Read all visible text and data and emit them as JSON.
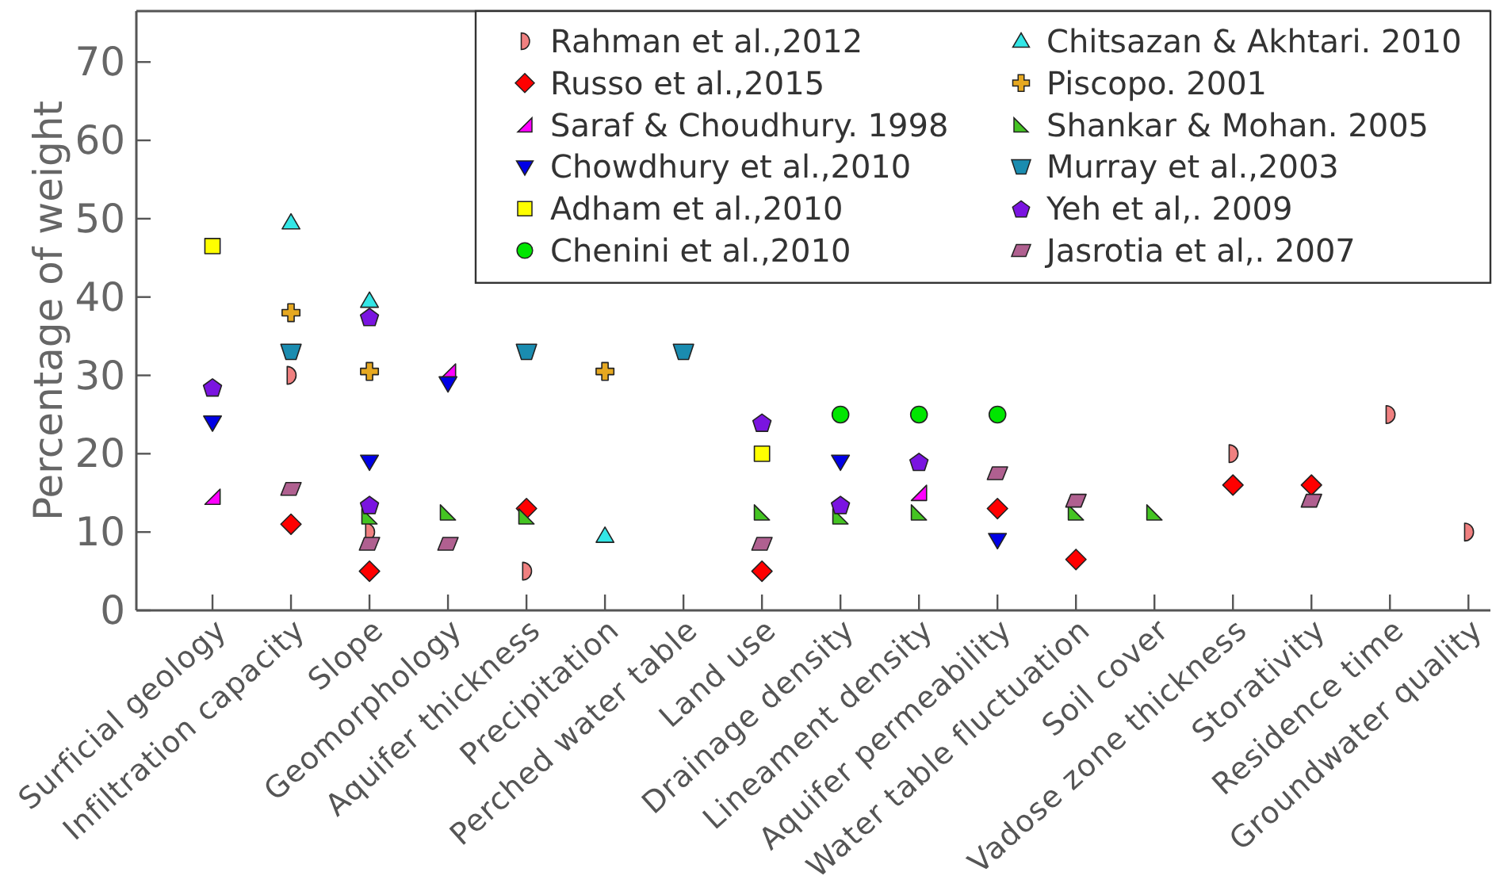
{
  "chart_data": {
    "type": "scatter",
    "ylabel": "Percentage of weight",
    "categories": [
      "Surficial geology",
      "Infiltration capacity",
      "Slope",
      "Geomorphology",
      "Aquifer thickness",
      "Precipitation",
      "Perched water table",
      "Land use",
      "Drainage density",
      "Lineament density",
      "Aquifer permeability",
      "Water table fluctuation",
      "Soil cover",
      "Vadose zone thickness",
      "Storativity",
      "Residence time",
      "Groundwater quality"
    ],
    "ylim": [
      0,
      76.5
    ],
    "yticks": [
      0,
      10,
      20,
      30,
      40,
      50,
      60,
      70
    ],
    "legend": "top right",
    "series": [
      {
        "name": "Rahman et al.,2012",
        "color": "#f08080",
        "x": [
          "Infiltration capacity",
          "Slope",
          "Aquifer thickness",
          "Vadose zone thickness",
          "Residence time",
          "Groundwater quality"
        ],
        "values": [
          30,
          10,
          5,
          20,
          25,
          10
        ]
      },
      {
        "name": "Russo et al.,2015",
        "color": "#ff0000",
        "marker": "diamond",
        "x": [
          "Infiltration capacity",
          "Slope",
          "Aquifer thickness",
          "Land use",
          "Aquifer permeability",
          "Water table fluctuation",
          "Vadose zone thickness",
          "Storativity"
        ],
        "values": [
          11,
          5,
          13,
          5,
          13,
          6.5,
          16,
          16
        ]
      },
      {
        "name": "Saraf & Choudhury. 1998",
        "color": "#ff00ff",
        "x": [
          "Surficial geology",
          "Geomorphology",
          "Lineament density"
        ],
        "values": [
          14.5,
          30.5,
          15
        ]
      },
      {
        "name": "Chowdhury et al.,2010",
        "color": "#0000e6",
        "x": [
          "Surficial geology",
          "Slope",
          "Geomorphology",
          "Drainage density",
          "Aquifer permeability"
        ],
        "values": [
          24,
          19,
          29,
          19,
          9
        ]
      },
      {
        "name": "Adham et al.,2010",
        "color": "#ffff00",
        "marker": "square",
        "x": [
          "Surficial geology",
          "Land use"
        ],
        "values": [
          46.5,
          20
        ]
      },
      {
        "name": "Chenini et al.,2010",
        "color": "#00e600",
        "marker": "circle",
        "x": [
          "Drainage density",
          "Lineament density",
          "Aquifer permeability"
        ],
        "values": [
          25,
          25,
          25
        ]
      },
      {
        "name": "Chitsazan & Akhtari. 2010",
        "color": "#33e6e6",
        "marker": "triangle",
        "x": [
          "Infiltration capacity",
          "Slope",
          "Precipitation"
        ],
        "values": [
          49.5,
          39.5,
          9.5
        ]
      },
      {
        "name": "Piscopo. 2001",
        "color": "#e6a820",
        "marker": "cross",
        "x": [
          "Infiltration capacity",
          "Slope",
          "Precipitation"
        ],
        "values": [
          38,
          30.5,
          30.5
        ]
      },
      {
        "name": "Shankar & Mohan. 2005",
        "color": "#44c422",
        "x": [
          "Slope",
          "Geomorphology",
          "Aquifer thickness",
          "Land use",
          "Drainage density",
          "Lineament density",
          "Water table fluctuation",
          "Soil cover"
        ],
        "values": [
          12,
          12.5,
          12,
          12.5,
          12,
          12.5,
          12.5,
          12.5
        ]
      },
      {
        "name": "Murray et al.,2003",
        "color": "#1a8cb0",
        "x": [
          "Infiltration capacity",
          "Aquifer thickness",
          "Perched water table"
        ],
        "values": [
          33,
          33,
          33
        ]
      },
      {
        "name": "Yeh et al,. 2009",
        "color": "#7a14e0",
        "x": [
          "Surficial geology",
          "Slope",
          "Slope",
          "Land use",
          "Drainage density",
          "Lineament density"
        ],
        "values": [
          28.5,
          37.5,
          13.5,
          24,
          13.5,
          19
        ]
      },
      {
        "name": "Jasrotia et al,. 2007",
        "color": "#b06090",
        "x": [
          "Infiltration capacity",
          "Slope",
          "Geomorphology",
          "Land use",
          "Aquifer permeability",
          "Water table fluctuation",
          "Storativity"
        ],
        "values": [
          15.5,
          8.5,
          8.5,
          8.5,
          17.5,
          14,
          14
        ]
      }
    ]
  }
}
